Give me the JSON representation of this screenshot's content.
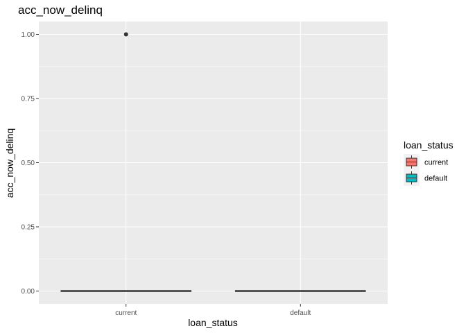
{
  "chart_data": {
    "type": "boxplot",
    "title": "acc_now_delinq",
    "xlabel": "loan_status",
    "ylabel": "acc_now_delinq",
    "categories": [
      "current",
      "default"
    ],
    "ylim": [
      -0.05,
      1.05
    ],
    "yticks": [
      0.0,
      0.25,
      0.5,
      0.75,
      1.0
    ],
    "ytick_labels": [
      "0.00",
      "0.25",
      "0.50",
      "0.75",
      "1.00"
    ],
    "grid": true,
    "boxes": [
      {
        "category": "current",
        "min": 0,
        "q1": 0,
        "median": 0,
        "q3": 0,
        "max": 0,
        "outliers": [
          1.0
        ]
      },
      {
        "category": "default",
        "min": 0,
        "q1": 0,
        "median": 0,
        "q3": 0,
        "max": 0,
        "outliers": []
      }
    ],
    "legend": {
      "title": "loan_status",
      "position": "right",
      "items": [
        {
          "label": "current",
          "color": "#F8766D"
        },
        {
          "label": "default",
          "color": "#00BFC4"
        }
      ]
    },
    "colors": {
      "panel": "#EBEBEB",
      "grid_major": "#FFFFFF",
      "box_line": "#333333",
      "outlier": "#333333"
    }
  }
}
